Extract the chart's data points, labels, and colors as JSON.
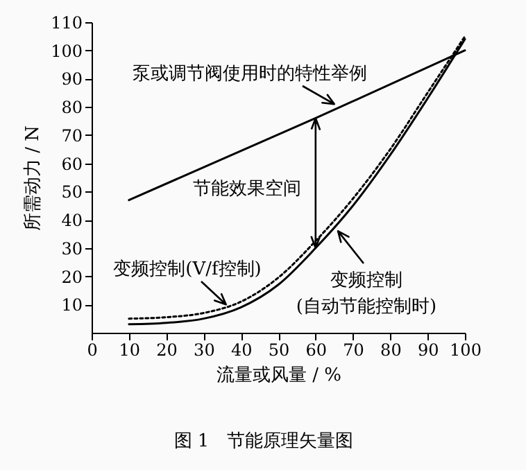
{
  "chart_data": {
    "type": "line",
    "xlabel": "流量或风量 / %",
    "ylabel": "所需动力 / N",
    "xlim": [
      0,
      100
    ],
    "xticks": [
      0,
      10,
      20,
      30,
      40,
      50,
      60,
      70,
      80,
      90,
      100
    ],
    "ylim": [
      0,
      110
    ],
    "yticks": [
      10,
      20,
      30,
      40,
      50,
      60,
      70,
      80,
      90,
      100,
      110
    ],
    "series": [
      {
        "color": "#000000",
        "line_style": "solid",
        "x": [
          10,
          60,
          100
        ],
        "values": [
          47,
          76,
          100
        ]
      },
      {
        "color": "#000000",
        "line_style": "dotted",
        "x": [
          10,
          20,
          30,
          40,
          50,
          60,
          70,
          80,
          90,
          100
        ],
        "values": [
          5,
          5.5,
          7,
          11,
          19.5,
          32.5,
          47.5,
          65,
          85,
          105
        ]
      },
      {
        "color": "#000000",
        "line_style": "solid",
        "x": [
          10,
          20,
          30,
          40,
          50,
          60,
          70,
          80,
          90,
          100
        ],
        "values": [
          3,
          3.5,
          5,
          9,
          17,
          30,
          45,
          63,
          83,
          104
        ]
      }
    ],
    "annotations": [
      {
        "text": "泵或调节阀使用时的特性举例",
        "x": 65,
        "y": 81
      },
      "节能效果空间",
      {
        "text": "变频控制(V/f控制)",
        "x": 36,
        "y": 10
      },
      {
        "text": "变频控制\n(自动节能控制时)",
        "x": 66,
        "y": 36
      },
      "图 1　节能原理矢量图"
    ]
  }
}
